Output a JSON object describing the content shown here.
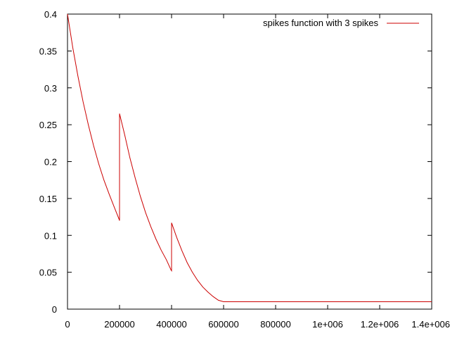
{
  "chart_data": {
    "type": "line",
    "title": "",
    "xlabel": "",
    "ylabel": "",
    "xlim": [
      0,
      1400000
    ],
    "ylim": [
      0,
      0.4
    ],
    "grid": false,
    "legend_position": "top-right",
    "x_ticks": [
      {
        "value": 0,
        "label": "0"
      },
      {
        "value": 200000,
        "label": "200000"
      },
      {
        "value": 400000,
        "label": "400000"
      },
      {
        "value": 600000,
        "label": "600000"
      },
      {
        "value": 800000,
        "label": "800000"
      },
      {
        "value": 1000000,
        "label": "1e+006"
      },
      {
        "value": 1200000,
        "label": "1.2e+006"
      },
      {
        "value": 1400000,
        "label": "1.4e+006"
      }
    ],
    "y_ticks": [
      {
        "value": 0,
        "label": "0"
      },
      {
        "value": 0.05,
        "label": "0.05"
      },
      {
        "value": 0.1,
        "label": "0.1"
      },
      {
        "value": 0.15,
        "label": "0.15"
      },
      {
        "value": 0.2,
        "label": "0.2"
      },
      {
        "value": 0.25,
        "label": "0.25"
      },
      {
        "value": 0.3,
        "label": "0.3"
      },
      {
        "value": 0.35,
        "label": "0.35"
      },
      {
        "value": 0.4,
        "label": "0.4"
      }
    ],
    "series": [
      {
        "name": "spikes function with 3 spikes",
        "color": "#cc0000",
        "x": [
          0,
          20000,
          40000,
          60000,
          80000,
          100000,
          120000,
          140000,
          160000,
          180000,
          198000,
          200000,
          200000,
          220000,
          240000,
          260000,
          280000,
          300000,
          320000,
          340000,
          360000,
          380000,
          398000,
          400000,
          400000,
          420000,
          440000,
          460000,
          480000,
          500000,
          520000,
          540000,
          560000,
          580000,
          600000,
          800000,
          1000000,
          1200000,
          1400000
        ],
        "y": [
          0.4,
          0.355,
          0.316,
          0.281,
          0.25,
          0.222,
          0.197,
          0.175,
          0.156,
          0.138,
          0.122,
          0.12,
          0.265,
          0.236,
          0.205,
          0.178,
          0.153,
          0.131,
          0.112,
          0.095,
          0.08,
          0.067,
          0.053,
          0.052,
          0.117,
          0.097,
          0.079,
          0.063,
          0.05,
          0.039,
          0.03,
          0.023,
          0.017,
          0.012,
          0.01,
          0.01,
          0.01,
          0.01,
          0.01
        ]
      }
    ]
  }
}
